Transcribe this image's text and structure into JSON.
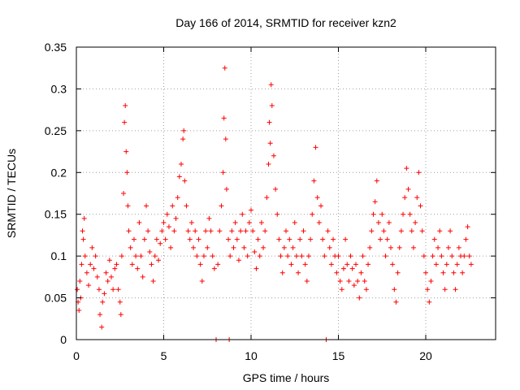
{
  "chart_data": {
    "type": "scatter",
    "title": "Day 166 of 2014, SRMTID for receiver kzn2",
    "xlabel": "GPS time / hours",
    "ylabel": "SRMTID / TECUs",
    "xlim": [
      0,
      24
    ],
    "ylim": [
      0,
      0.35
    ],
    "xticks": [
      0,
      5,
      10,
      15,
      20
    ],
    "xtick_labels": [
      "0",
      "5",
      "10",
      "15",
      "20"
    ],
    "yticks": [
      0,
      0.05,
      0.1,
      0.15,
      0.2,
      0.25,
      0.3,
      0.35
    ],
    "ytick_labels": [
      "0",
      "0.05",
      "0.1",
      "0.15",
      "0.2",
      "0.25",
      "0.3",
      "0.35"
    ],
    "grid": true,
    "marker": "+",
    "color": "#ff0000",
    "series": [
      {
        "name": "SRMTID",
        "points": [
          [
            0.05,
            0.06
          ],
          [
            0.1,
            0.045
          ],
          [
            0.15,
            0.035
          ],
          [
            0.2,
            0.07
          ],
          [
            0.25,
            0.05
          ],
          [
            0.3,
            0.09
          ],
          [
            0.35,
            0.13
          ],
          [
            0.4,
            0.12
          ],
          [
            0.45,
            0.145
          ],
          [
            0.5,
            0.1
          ],
          [
            0.6,
            0.08
          ],
          [
            0.7,
            0.065
          ],
          [
            0.8,
            0.09
          ],
          [
            0.9,
            0.11
          ],
          [
            1.0,
            0.085
          ],
          [
            1.1,
            0.1
          ],
          [
            1.2,
            0.075
          ],
          [
            1.3,
            0.06
          ],
          [
            1.35,
            0.03
          ],
          [
            1.45,
            0.015
          ],
          [
            1.5,
            0.045
          ],
          [
            1.6,
            0.055
          ],
          [
            1.7,
            0.08
          ],
          [
            1.8,
            0.07
          ],
          [
            1.9,
            0.095
          ],
          [
            2.0,
            0.075
          ],
          [
            2.1,
            0.06
          ],
          [
            2.2,
            0.085
          ],
          [
            2.3,
            0.09
          ],
          [
            2.4,
            0.06
          ],
          [
            2.5,
            0.045
          ],
          [
            2.55,
            0.03
          ],
          [
            2.6,
            0.1
          ],
          [
            2.7,
            0.175
          ],
          [
            2.75,
            0.26
          ],
          [
            2.8,
            0.28
          ],
          [
            2.85,
            0.225
          ],
          [
            2.9,
            0.2
          ],
          [
            2.95,
            0.16
          ],
          [
            3.0,
            0.13
          ],
          [
            3.1,
            0.11
          ],
          [
            3.2,
            0.09
          ],
          [
            3.3,
            0.12
          ],
          [
            3.4,
            0.1
          ],
          [
            3.5,
            0.085
          ],
          [
            3.6,
            0.14
          ],
          [
            3.7,
            0.1
          ],
          [
            3.8,
            0.075
          ],
          [
            3.9,
            0.12
          ],
          [
            4.0,
            0.16
          ],
          [
            4.1,
            0.13
          ],
          [
            4.2,
            0.105
          ],
          [
            4.3,
            0.09
          ],
          [
            4.4,
            0.07
          ],
          [
            4.5,
            0.1
          ],
          [
            4.6,
            0.12
          ],
          [
            4.7,
            0.095
          ],
          [
            4.8,
            0.115
          ],
          [
            4.9,
            0.13
          ],
          [
            5.0,
            0.14
          ],
          [
            5.1,
            0.12
          ],
          [
            5.2,
            0.15
          ],
          [
            5.3,
            0.135
          ],
          [
            5.4,
            0.11
          ],
          [
            5.5,
            0.16
          ],
          [
            5.6,
            0.13
          ],
          [
            5.7,
            0.145
          ],
          [
            5.8,
            0.17
          ],
          [
            5.9,
            0.195
          ],
          [
            6.0,
            0.21
          ],
          [
            6.1,
            0.24
          ],
          [
            6.15,
            0.25
          ],
          [
            6.2,
            0.19
          ],
          [
            6.3,
            0.16
          ],
          [
            6.4,
            0.13
          ],
          [
            6.5,
            0.12
          ],
          [
            6.6,
            0.14
          ],
          [
            6.7,
            0.11
          ],
          [
            6.8,
            0.13
          ],
          [
            6.9,
            0.1
          ],
          [
            7.0,
            0.12
          ],
          [
            7.1,
            0.09
          ],
          [
            7.2,
            0.07
          ],
          [
            7.3,
            0.1
          ],
          [
            7.4,
            0.13
          ],
          [
            7.5,
            0.11
          ],
          [
            7.6,
            0.145
          ],
          [
            7.7,
            0.13
          ],
          [
            7.8,
            0.1
          ],
          [
            7.9,
            0.085
          ],
          [
            8.0,
            0.0
          ],
          [
            8.1,
            0.09
          ],
          [
            8.2,
            0.13
          ],
          [
            8.3,
            0.16
          ],
          [
            8.4,
            0.2
          ],
          [
            8.45,
            0.265
          ],
          [
            8.5,
            0.325
          ],
          [
            8.55,
            0.24
          ],
          [
            8.6,
            0.18
          ],
          [
            8.7,
            0.12
          ],
          [
            8.75,
            0.0
          ],
          [
            8.8,
            0.1
          ],
          [
            8.9,
            0.13
          ],
          [
            9.0,
            0.11
          ],
          [
            9.1,
            0.14
          ],
          [
            9.2,
            0.12
          ],
          [
            9.3,
            0.095
          ],
          [
            9.4,
            0.13
          ],
          [
            9.5,
            0.15
          ],
          [
            9.6,
            0.11
          ],
          [
            9.7,
            0.13
          ],
          [
            9.8,
            0.1
          ],
          [
            9.9,
            0.14
          ],
          [
            10.0,
            0.155
          ],
          [
            10.1,
            0.13
          ],
          [
            10.2,
            0.105
          ],
          [
            10.3,
            0.085
          ],
          [
            10.4,
            0.12
          ],
          [
            10.5,
            0.1
          ],
          [
            10.6,
            0.14
          ],
          [
            10.7,
            0.11
          ],
          [
            10.8,
            0.13
          ],
          [
            10.9,
            0.17
          ],
          [
            11.0,
            0.21
          ],
          [
            11.05,
            0.26
          ],
          [
            11.1,
            0.235
          ],
          [
            11.15,
            0.305
          ],
          [
            11.2,
            0.28
          ],
          [
            11.3,
            0.22
          ],
          [
            11.4,
            0.18
          ],
          [
            11.5,
            0.15
          ],
          [
            11.6,
            0.12
          ],
          [
            11.7,
            0.1
          ],
          [
            11.8,
            0.08
          ],
          [
            11.9,
            0.11
          ],
          [
            12.0,
            0.13
          ],
          [
            12.1,
            0.1
          ],
          [
            12.2,
            0.12
          ],
          [
            12.3,
            0.09
          ],
          [
            12.4,
            0.11
          ],
          [
            12.5,
            0.14
          ],
          [
            12.6,
            0.1
          ],
          [
            12.7,
            0.08
          ],
          [
            12.8,
            0.12
          ],
          [
            12.9,
            0.1
          ],
          [
            13.0,
            0.13
          ],
          [
            13.1,
            0.09
          ],
          [
            13.2,
            0.07
          ],
          [
            13.3,
            0.1
          ],
          [
            13.4,
            0.12
          ],
          [
            13.5,
            0.15
          ],
          [
            13.6,
            0.19
          ],
          [
            13.7,
            0.23
          ],
          [
            13.8,
            0.17
          ],
          [
            13.9,
            0.14
          ],
          [
            14.0,
            0.16
          ],
          [
            14.1,
            0.12
          ],
          [
            14.2,
            0.1
          ],
          [
            14.3,
            0.0
          ],
          [
            14.4,
            0.13
          ],
          [
            14.5,
            0.11
          ],
          [
            14.6,
            0.09
          ],
          [
            14.7,
            0.12
          ],
          [
            14.8,
            0.1
          ],
          [
            14.9,
            0.08
          ],
          [
            15.0,
            0.1
          ],
          [
            15.1,
            0.07
          ],
          [
            15.2,
            0.06
          ],
          [
            15.3,
            0.085
          ],
          [
            15.4,
            0.12
          ],
          [
            15.5,
            0.09
          ],
          [
            15.6,
            0.07
          ],
          [
            15.7,
            0.1
          ],
          [
            15.8,
            0.085
          ],
          [
            15.9,
            0.065
          ],
          [
            16.0,
            0.09
          ],
          [
            16.1,
            0.07
          ],
          [
            16.2,
            0.05
          ],
          [
            16.3,
            0.08
          ],
          [
            16.4,
            0.1
          ],
          [
            16.5,
            0.07
          ],
          [
            16.6,
            0.06
          ],
          [
            16.7,
            0.09
          ],
          [
            16.8,
            0.11
          ],
          [
            16.9,
            0.13
          ],
          [
            17.0,
            0.15
          ],
          [
            17.1,
            0.165
          ],
          [
            17.2,
            0.19
          ],
          [
            17.3,
            0.14
          ],
          [
            17.4,
            0.12
          ],
          [
            17.5,
            0.15
          ],
          [
            17.6,
            0.13
          ],
          [
            17.7,
            0.1
          ],
          [
            17.8,
            0.12
          ],
          [
            17.9,
            0.14
          ],
          [
            18.0,
            0.11
          ],
          [
            18.1,
            0.09
          ],
          [
            18.2,
            0.06
          ],
          [
            18.3,
            0.045
          ],
          [
            18.4,
            0.08
          ],
          [
            18.5,
            0.11
          ],
          [
            18.6,
            0.13
          ],
          [
            18.7,
            0.15
          ],
          [
            18.8,
            0.17
          ],
          [
            18.9,
            0.205
          ],
          [
            19.0,
            0.18
          ],
          [
            19.1,
            0.15
          ],
          [
            19.2,
            0.13
          ],
          [
            19.3,
            0.11
          ],
          [
            19.4,
            0.14
          ],
          [
            19.5,
            0.17
          ],
          [
            19.6,
            0.2
          ],
          [
            19.7,
            0.16
          ],
          [
            19.8,
            0.13
          ],
          [
            19.9,
            0.1
          ],
          [
            20.0,
            0.08
          ],
          [
            20.1,
            0.06
          ],
          [
            20.2,
            0.045
          ],
          [
            20.3,
            0.07
          ],
          [
            20.4,
            0.1
          ],
          [
            20.5,
            0.12
          ],
          [
            20.6,
            0.09
          ],
          [
            20.7,
            0.11
          ],
          [
            20.8,
            0.13
          ],
          [
            20.9,
            0.1
          ],
          [
            21.0,
            0.08
          ],
          [
            21.1,
            0.06
          ],
          [
            21.2,
            0.09
          ],
          [
            21.3,
            0.11
          ],
          [
            21.4,
            0.13
          ],
          [
            21.5,
            0.1
          ],
          [
            21.6,
            0.08
          ],
          [
            21.7,
            0.06
          ],
          [
            21.8,
            0.09
          ],
          [
            21.9,
            0.11
          ],
          [
            22.0,
            0.1
          ],
          [
            22.1,
            0.08
          ],
          [
            22.2,
            0.1
          ],
          [
            22.3,
            0.12
          ],
          [
            22.4,
            0.135
          ],
          [
            22.5,
            0.1
          ],
          [
            22.6,
            0.09
          ]
        ]
      }
    ]
  }
}
